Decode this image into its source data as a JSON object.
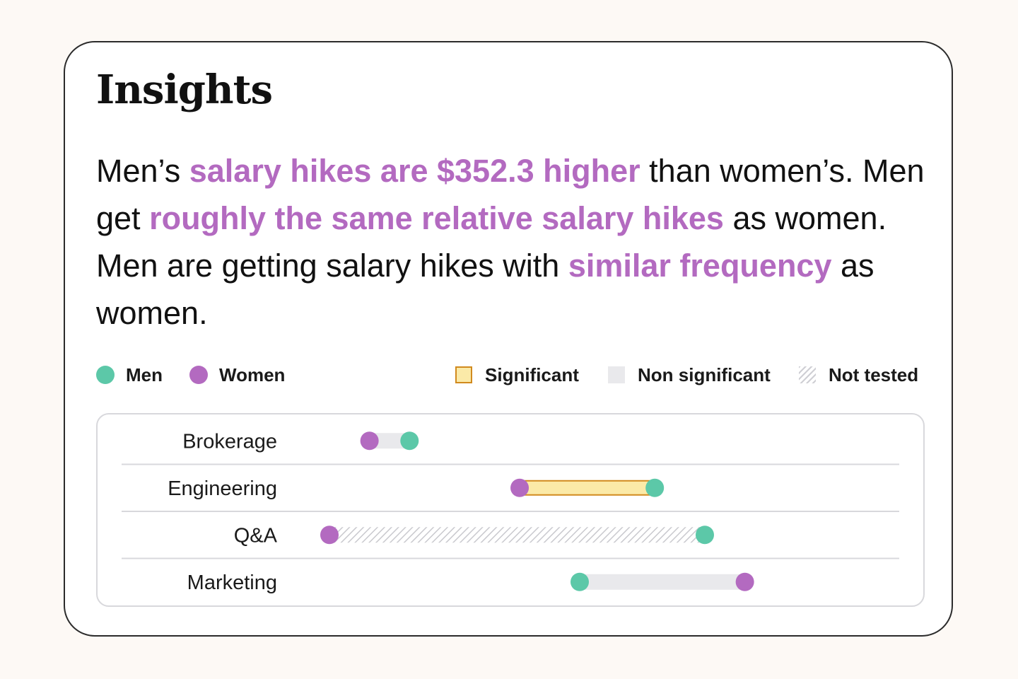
{
  "title": "Insights",
  "summary": {
    "s1_a": "Men’s ",
    "s1_b": "salary hikes are $352.3 higher",
    "s1_c": " than women’s.",
    "s2_a": " Men get ",
    "s2_b": "roughly the same relative salary hikes",
    "s2_c": " as women.",
    "s3_a": " Men are getting salary hikes with ",
    "s3_b": "similar frequency",
    "s3_c": " as women."
  },
  "legend": {
    "men": "Men",
    "women": "Women",
    "significant": "Significant",
    "non_significant": "Non significant",
    "not_tested": "Not tested"
  },
  "colors": {
    "men": "#5cc8a8",
    "women": "#b36ac0",
    "significant_fill": "#fbeaa8",
    "significant_stroke": "#d18a1e",
    "non_significant": "#e9e9ec",
    "not_tested": "#cfcfd4"
  },
  "chart_data": {
    "type": "dumbbell",
    "categories": [
      "Brokerage",
      "Engineering",
      "Q&A",
      "Marketing"
    ],
    "series": [
      {
        "name": "Men",
        "values": [
          0.16,
          0.65,
          0.75,
          0.5
        ]
      },
      {
        "name": "Women",
        "values": [
          0.08,
          0.38,
          0.0,
          0.83
        ]
      }
    ],
    "status": [
      "non_significant",
      "significant",
      "not_tested",
      "non_significant"
    ],
    "xlim": [
      0,
      1
    ],
    "grid": false
  }
}
